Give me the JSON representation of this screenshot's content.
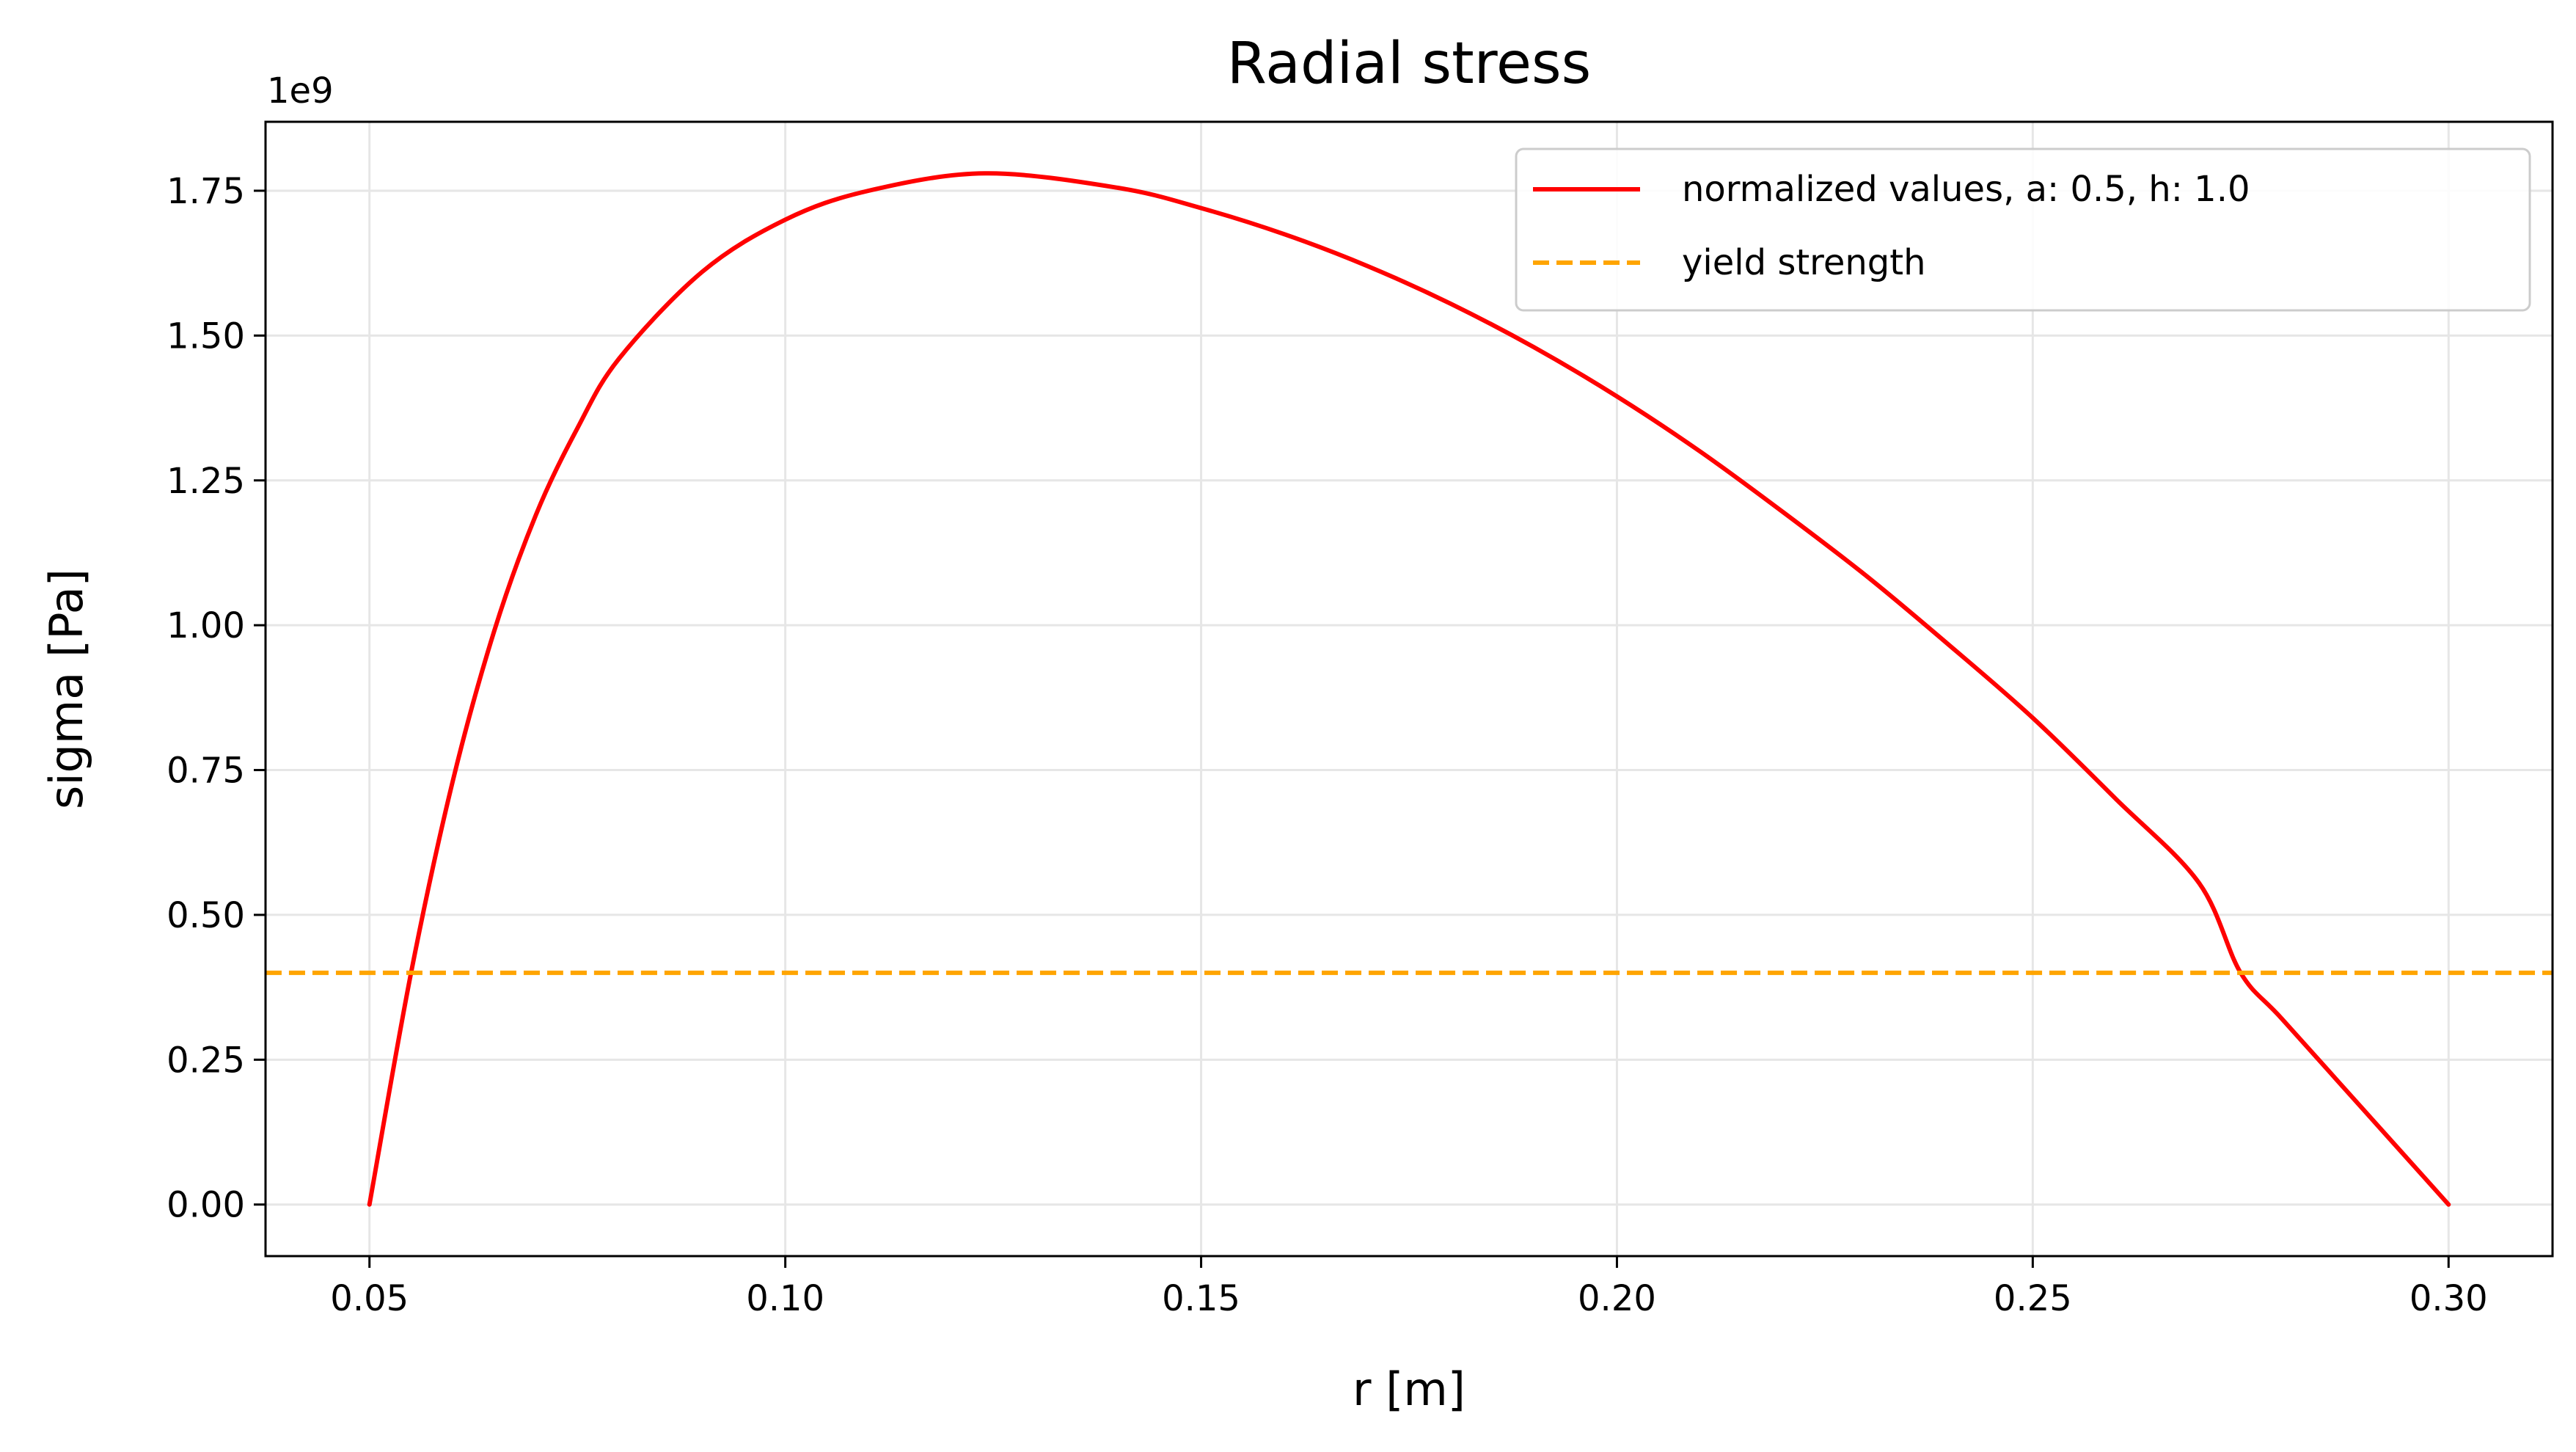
{
  "chart_data": {
    "type": "line",
    "title": "Radial stress",
    "xlabel": "r [m]",
    "ylabel": "sigma [Pa]",
    "y_offset_label": "1e9",
    "xlim": [
      0.0375,
      0.3125
    ],
    "ylim": [
      -0.089,
      1.869
    ],
    "x_ticks": [
      0.05,
      0.1,
      0.15,
      0.2,
      0.25,
      0.3
    ],
    "x_tick_labels": [
      "0.05",
      "0.10",
      "0.15",
      "0.20",
      "0.25",
      "0.30"
    ],
    "y_ticks": [
      0.0,
      0.25,
      0.5,
      0.75,
      1.0,
      1.25,
      1.5,
      1.75
    ],
    "y_tick_labels": [
      "0.00",
      "0.25",
      "0.50",
      "0.75",
      "1.00",
      "1.25",
      "1.50",
      "1.75"
    ],
    "grid": true,
    "legend_position": "top-right",
    "series": [
      {
        "name": "normalized values, a: 0.5, h: 1.0",
        "color": "#ff0000",
        "style": "solid",
        "x": [
          0.05,
          0.055,
          0.06,
          0.065,
          0.07,
          0.075,
          0.08,
          0.09,
          0.1,
          0.11,
          0.124,
          0.14,
          0.15,
          0.16,
          0.17,
          0.18,
          0.19,
          0.2,
          0.21,
          0.22,
          0.23,
          0.24,
          0.25,
          0.26,
          0.27,
          0.275,
          0.28,
          0.29,
          0.3
        ],
        "y": [
          0.0,
          0.4,
          0.73,
          0.99,
          1.19,
          1.34,
          1.46,
          1.61,
          1.7,
          1.75,
          1.78,
          1.755,
          1.72,
          1.675,
          1.62,
          1.555,
          1.48,
          1.395,
          1.3,
          1.195,
          1.085,
          0.965,
          0.84,
          0.7,
          0.555,
          0.4,
          0.32,
          0.16,
          0.0
        ]
      },
      {
        "name": "yield strength",
        "color": "#ffa500",
        "style": "dashed",
        "x": [
          0.0375,
          0.3125
        ],
        "y": [
          0.4,
          0.4
        ]
      }
    ]
  }
}
